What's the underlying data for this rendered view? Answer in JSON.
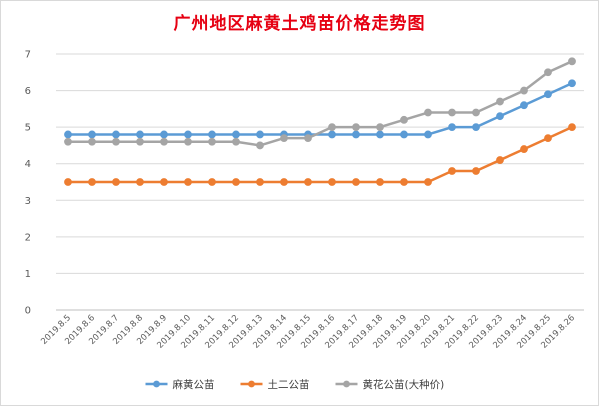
{
  "chart_data": {
    "type": "line",
    "title": "广州地区麻黄土鸡苗价格走势图",
    "categories": [
      "2019.8.5",
      "2019.8.6",
      "2019.8.7",
      "2019.8.8",
      "2019.8.9",
      "2019.8.10",
      "2019.8.11",
      "2019.8.12",
      "2019.8.13",
      "2019.8.14",
      "2019.8.15",
      "2019.8.16",
      "2019.8.17",
      "2019.8.18",
      "2019.8.19",
      "2019.8.20",
      "2019.8.21",
      "2019.8.22",
      "2019.8.23",
      "2019.8.24",
      "2019.8.25",
      "2019.8.26"
    ],
    "ylim": [
      0,
      7
    ],
    "yticks": [
      "0",
      "1",
      "2",
      "3",
      "4",
      "5",
      "6",
      "7"
    ],
    "grid": true,
    "legend_position": "bottom",
    "series": [
      {
        "name": "麻黄公苗",
        "color": "#5b9bd5",
        "values": [
          4.8,
          4.8,
          4.8,
          4.8,
          4.8,
          4.8,
          4.8,
          4.8,
          4.8,
          4.8,
          4.8,
          4.8,
          4.8,
          4.8,
          4.8,
          4.8,
          5.0,
          5.0,
          5.3,
          5.6,
          5.9,
          6.2
        ]
      },
      {
        "name": "土二公苗",
        "color": "#ed7d31",
        "values": [
          3.5,
          3.5,
          3.5,
          3.5,
          3.5,
          3.5,
          3.5,
          3.5,
          3.5,
          3.5,
          3.5,
          3.5,
          3.5,
          3.5,
          3.5,
          3.5,
          3.8,
          3.8,
          4.1,
          4.4,
          4.7,
          5.0
        ]
      },
      {
        "name": "黄花公苗(大种价)",
        "color": "#a5a5a5",
        "values": [
          4.6,
          4.6,
          4.6,
          4.6,
          4.6,
          4.6,
          4.6,
          4.6,
          4.5,
          4.7,
          4.7,
          5.0,
          5.0,
          5.0,
          5.2,
          5.4,
          5.4,
          5.4,
          5.7,
          6.0,
          6.5,
          6.8
        ]
      }
    ]
  }
}
